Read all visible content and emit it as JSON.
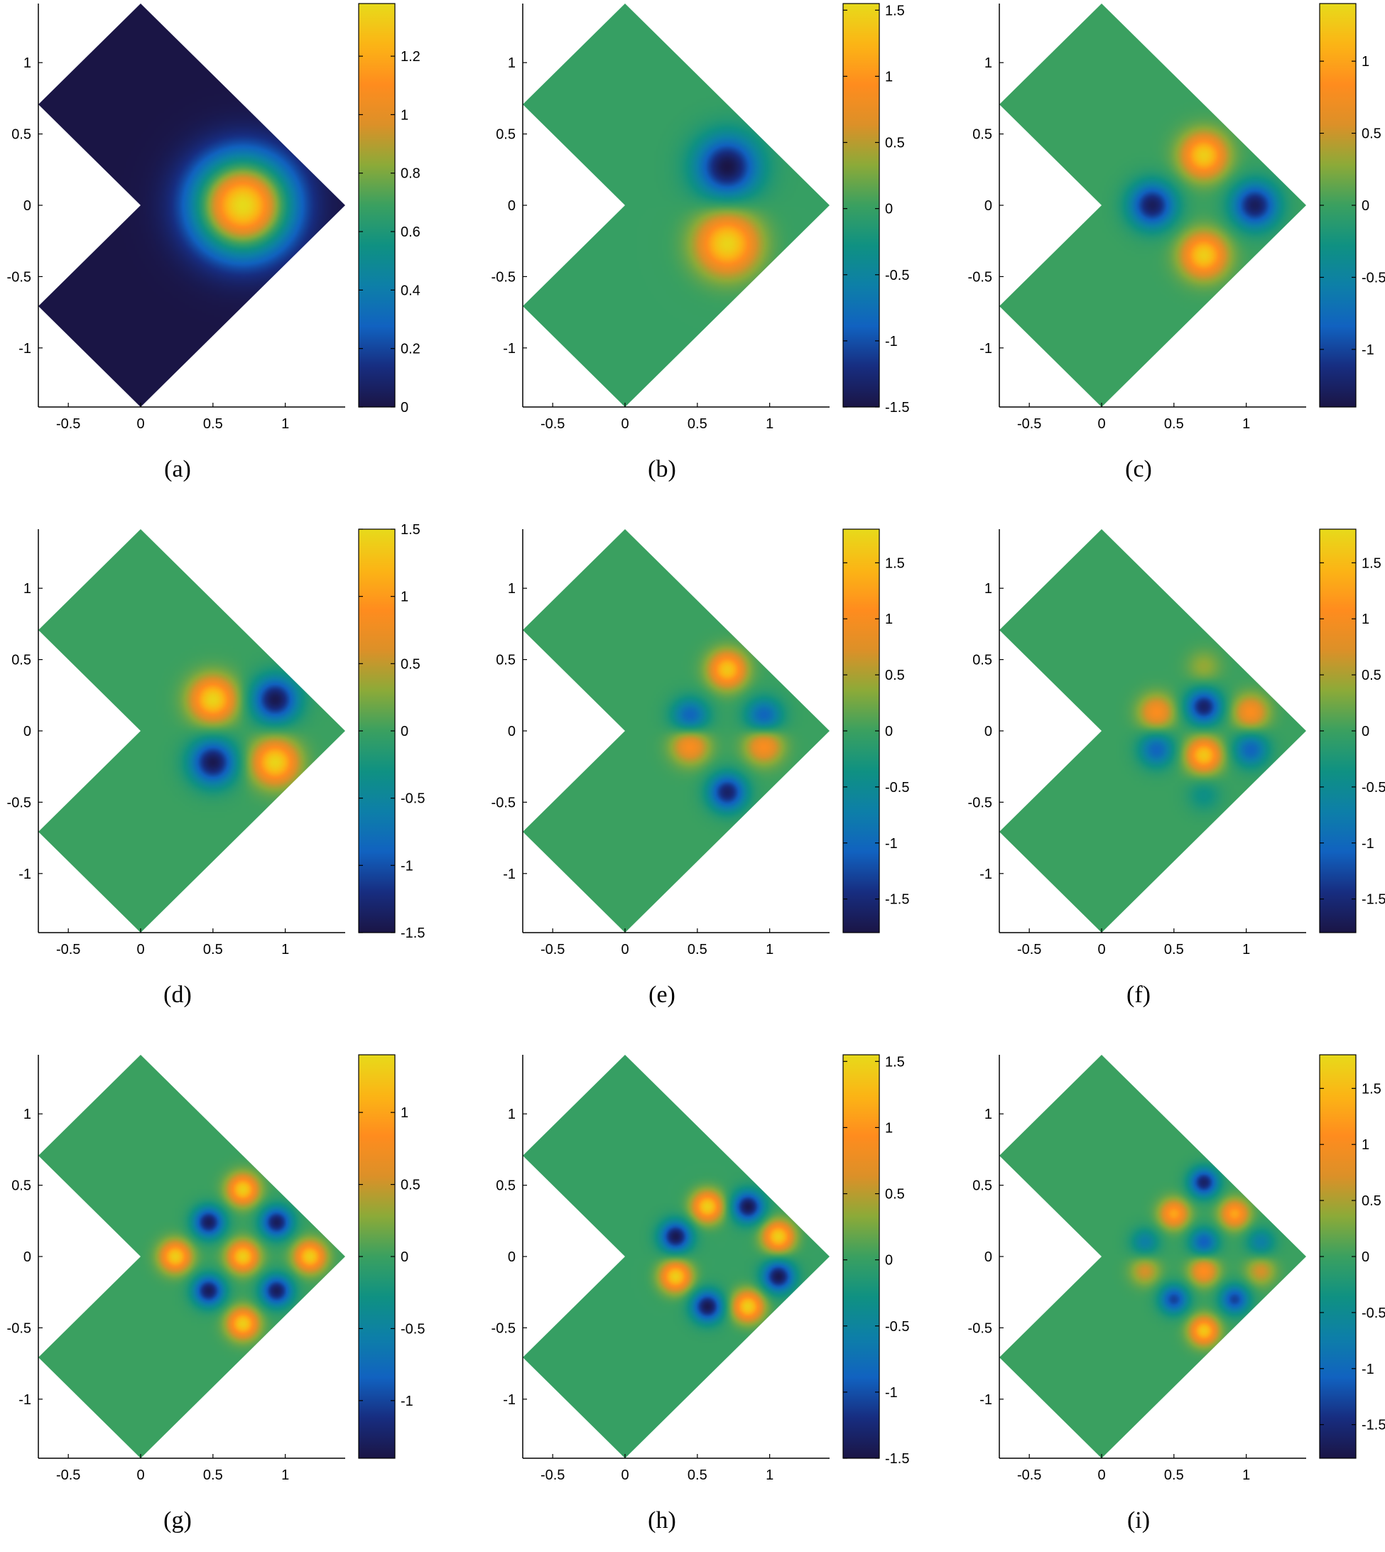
{
  "colormap": [
    "#1a1545",
    "#172d80",
    "#1162c0",
    "#0d7fa8",
    "#0f9182",
    "#3aa060",
    "#8caa38",
    "#dc9028",
    "#ff8c1e",
    "#fbb515",
    "#e7da1a"
  ],
  "chart_data": [
    {
      "type": "heatmap",
      "caption": "(a)",
      "xticks": [
        "-0.5",
        "0",
        "0.5",
        "1"
      ],
      "yticks": [
        "1",
        "0.5",
        "0",
        "-0.5",
        "-1"
      ],
      "xlim": [
        -0.7071,
        1.4142
      ],
      "ylim": [
        -1.4142,
        1.4142
      ],
      "colorbar": {
        "range": [
          0,
          1.38
        ],
        "ticks": [
          0,
          0.2,
          0.4,
          0.6,
          0.8,
          1,
          1.2
        ],
        "labels": [
          "0",
          "0.2",
          "0.4",
          "0.6",
          "0.8",
          "1",
          "1.2"
        ]
      },
      "background": 0,
      "peaks": [
        {
          "x": 0.707,
          "y": 0,
          "v": 1.38,
          "s": 0.23
        }
      ]
    },
    {
      "type": "heatmap",
      "caption": "(b)",
      "xticks": [
        "-0.5",
        "0",
        "0.5",
        "1"
      ],
      "yticks": [
        "1",
        "0.5",
        "0",
        "-0.5",
        "-1"
      ],
      "xlim": [
        -0.7071,
        1.4142
      ],
      "ylim": [
        -1.4142,
        1.4142
      ],
      "colorbar": {
        "range": [
          -1.5,
          1.55
        ],
        "ticks": [
          -1.5,
          -1,
          -0.5,
          0,
          0.5,
          1,
          1.5
        ],
        "labels": [
          "-1.5",
          "-1",
          "-0.5",
          "0",
          "0.5",
          "1",
          "1.5"
        ]
      },
      "background": 0,
      "peaks": [
        {
          "x": 0.707,
          "y": 0.27,
          "v": -1.5,
          "s": 0.15
        },
        {
          "x": 0.707,
          "y": -0.27,
          "v": 1.5,
          "s": 0.15
        }
      ]
    },
    {
      "type": "heatmap",
      "caption": "(c)",
      "xticks": [
        "-0.5",
        "0",
        "0.5",
        "1"
      ],
      "yticks": [
        "1",
        "0.5",
        "0",
        "-0.5",
        "-1"
      ],
      "xlim": [
        -0.7071,
        1.4142
      ],
      "ylim": [
        -1.4142,
        1.4142
      ],
      "colorbar": {
        "range": [
          -1.4,
          1.4
        ],
        "ticks": [
          -1,
          -0.5,
          0,
          0.5,
          1
        ],
        "labels": [
          "-1",
          "-0.5",
          "0",
          "0.5",
          "1"
        ]
      },
      "background": 0,
      "peaks": [
        {
          "x": 0.707,
          "y": 0.35,
          "v": 1.3,
          "s": 0.11
        },
        {
          "x": 0.707,
          "y": -0.35,
          "v": 1.3,
          "s": 0.11
        },
        {
          "x": 0.35,
          "y": 0,
          "v": -1.3,
          "s": 0.11
        },
        {
          "x": 1.06,
          "y": 0,
          "v": -1.3,
          "s": 0.11
        }
      ]
    },
    {
      "type": "heatmap",
      "caption": "(d)",
      "xticks": [
        "-0.5",
        "0",
        "0.5",
        "1"
      ],
      "yticks": [
        "1",
        "0.5",
        "0",
        "-0.5",
        "-1"
      ],
      "xlim": [
        -0.7071,
        1.4142
      ],
      "ylim": [
        -1.4142,
        1.4142
      ],
      "colorbar": {
        "range": [
          -1.5,
          1.5
        ],
        "ticks": [
          -1.5,
          -1,
          -0.5,
          0,
          0.5,
          1,
          1.5
        ],
        "labels": [
          "-1.5",
          "-1",
          "-0.5",
          "0",
          "0.5",
          "1",
          "1.5"
        ]
      },
      "background": 0,
      "peaks": [
        {
          "x": 0.5,
          "y": 0.22,
          "v": 1.45,
          "s": 0.11
        },
        {
          "x": 0.93,
          "y": 0.22,
          "v": -1.45,
          "s": 0.11
        },
        {
          "x": 0.5,
          "y": -0.22,
          "v": -1.45,
          "s": 0.11
        },
        {
          "x": 0.93,
          "y": -0.22,
          "v": 1.45,
          "s": 0.11
        }
      ]
    },
    {
      "type": "heatmap",
      "caption": "(e)",
      "xticks": [
        "-0.5",
        "0",
        "0.5",
        "1"
      ],
      "yticks": [
        "1",
        "0.5",
        "0",
        "-0.5",
        "-1"
      ],
      "xlim": [
        -0.7071,
        1.4142
      ],
      "ylim": [
        -1.4142,
        1.4142
      ],
      "colorbar": {
        "range": [
          -1.8,
          1.8
        ],
        "ticks": [
          -1.5,
          -1,
          -0.5,
          0,
          0.5,
          1,
          1.5
        ],
        "labels": [
          "-1.5",
          "-1",
          "-0.5",
          "0",
          "0.5",
          "1",
          "1.5"
        ]
      },
      "background": 0,
      "peaks": [
        {
          "x": 0.707,
          "y": 0.43,
          "v": 1.6,
          "s": 0.09
        },
        {
          "x": 0.707,
          "y": -0.43,
          "v": -1.6,
          "s": 0.09
        },
        {
          "x": 0.45,
          "y": 0.1,
          "v": -1.1,
          "s": 0.09
        },
        {
          "x": 0.96,
          "y": 0.1,
          "v": -1.1,
          "s": 0.09
        },
        {
          "x": 0.45,
          "y": -0.1,
          "v": 1.1,
          "s": 0.09
        },
        {
          "x": 0.96,
          "y": -0.1,
          "v": 1.1,
          "s": 0.09
        }
      ]
    },
    {
      "type": "heatmap",
      "caption": "(f)",
      "xticks": [
        "-0.5",
        "0",
        "0.5",
        "1"
      ],
      "yticks": [
        "1",
        "0.5",
        "0",
        "-0.5",
        "-1"
      ],
      "xlim": [
        -0.7071,
        1.4142
      ],
      "ylim": [
        -1.4142,
        1.4142
      ],
      "colorbar": {
        "range": [
          -1.8,
          1.8
        ],
        "ticks": [
          -1.5,
          -1,
          -0.5,
          0,
          0.5,
          1,
          1.5
        ],
        "labels": [
          "-1.5",
          "-1",
          "-0.5",
          "0",
          "0.5",
          "1",
          "1.5"
        ]
      },
      "background": 0,
      "peaks": [
        {
          "x": 0.707,
          "y": 0.17,
          "v": -1.6,
          "s": 0.085
        },
        {
          "x": 0.707,
          "y": -0.17,
          "v": 1.6,
          "s": 0.085
        },
        {
          "x": 0.38,
          "y": 0.13,
          "v": 1.05,
          "s": 0.085
        },
        {
          "x": 1.03,
          "y": 0.13,
          "v": 1.05,
          "s": 0.085
        },
        {
          "x": 0.38,
          "y": -0.13,
          "v": -1.05,
          "s": 0.085
        },
        {
          "x": 1.03,
          "y": -0.13,
          "v": -1.05,
          "s": 0.085
        },
        {
          "x": 0.707,
          "y": 0.45,
          "v": 0.4,
          "s": 0.08
        },
        {
          "x": 0.707,
          "y": -0.45,
          "v": -0.4,
          "s": 0.08
        }
      ]
    },
    {
      "type": "heatmap",
      "caption": "(g)",
      "xticks": [
        "-0.5",
        "0",
        "0.5",
        "1"
      ],
      "yticks": [
        "1",
        "0.5",
        "0",
        "-0.5",
        "-1"
      ],
      "xlim": [
        -0.7071,
        1.4142
      ],
      "ylim": [
        -1.4142,
        1.4142
      ],
      "colorbar": {
        "range": [
          -1.4,
          1.4
        ],
        "ticks": [
          -1,
          -0.5,
          0,
          0.5,
          1
        ],
        "labels": [
          "-1",
          "-0.5",
          "0",
          "0.5",
          "1"
        ]
      },
      "background": 0,
      "peaks": [
        {
          "x": 0.707,
          "y": 0,
          "v": 1.3,
          "s": 0.075
        },
        {
          "x": 0.707,
          "y": 0.47,
          "v": 1.3,
          "s": 0.075
        },
        {
          "x": 0.707,
          "y": -0.47,
          "v": 1.3,
          "s": 0.075
        },
        {
          "x": 0.24,
          "y": 0,
          "v": 1.3,
          "s": 0.075
        },
        {
          "x": 1.17,
          "y": 0,
          "v": 1.3,
          "s": 0.075
        },
        {
          "x": 0.47,
          "y": 0.24,
          "v": -1.3,
          "s": 0.075
        },
        {
          "x": 0.94,
          "y": 0.24,
          "v": -1.3,
          "s": 0.075
        },
        {
          "x": 0.47,
          "y": -0.24,
          "v": -1.3,
          "s": 0.075
        },
        {
          "x": 0.94,
          "y": -0.24,
          "v": -1.3,
          "s": 0.075
        }
      ]
    },
    {
      "type": "heatmap",
      "caption": "(h)",
      "xticks": [
        "-0.5",
        "0",
        "0.5",
        "1"
      ],
      "yticks": [
        "1",
        "0.5",
        "0",
        "-0.5",
        "-1"
      ],
      "xlim": [
        -0.7071,
        1.4142
      ],
      "ylim": [
        -1.4142,
        1.4142
      ],
      "colorbar": {
        "range": [
          -1.5,
          1.55
        ],
        "ticks": [
          -1.5,
          -1,
          -0.5,
          0,
          0.5,
          1,
          1.5
        ],
        "labels": [
          "-1.5",
          "-1",
          "-0.5",
          "0",
          "0.5",
          "1",
          "1.5"
        ]
      },
      "background": 0,
      "peaks": [
        {
          "x": 0.57,
          "y": 0.35,
          "v": 1.45,
          "s": 0.075
        },
        {
          "x": 0.85,
          "y": 0.35,
          "v": -1.45,
          "s": 0.075
        },
        {
          "x": 1.06,
          "y": 0.14,
          "v": 1.45,
          "s": 0.075
        },
        {
          "x": 1.06,
          "y": -0.14,
          "v": -1.45,
          "s": 0.075
        },
        {
          "x": 0.85,
          "y": -0.35,
          "v": 1.45,
          "s": 0.075
        },
        {
          "x": 0.57,
          "y": -0.35,
          "v": -1.45,
          "s": 0.075
        },
        {
          "x": 0.35,
          "y": -0.14,
          "v": 1.45,
          "s": 0.075
        },
        {
          "x": 0.35,
          "y": 0.14,
          "v": -1.45,
          "s": 0.075
        }
      ]
    },
    {
      "type": "heatmap",
      "caption": "(i)",
      "xticks": [
        "-0.5",
        "0",
        "0.5",
        "1"
      ],
      "yticks": [
        "1",
        "0.5",
        "0",
        "-0.5",
        "-1"
      ],
      "xlim": [
        -0.7071,
        1.4142
      ],
      "ylim": [
        -1.4142,
        1.4142
      ],
      "colorbar": {
        "range": [
          -1.8,
          1.8
        ],
        "ticks": [
          -1.5,
          -1,
          -0.5,
          0,
          0.5,
          1,
          1.5
        ],
        "labels": [
          "-1.5",
          "-1",
          "-0.5",
          "0",
          "0.5",
          "1",
          "1.5"
        ]
      },
      "background": 0,
      "peaks": [
        {
          "x": 0.707,
          "y": 0.52,
          "v": -1.6,
          "s": 0.07
        },
        {
          "x": 0.707,
          "y": -0.52,
          "v": 1.6,
          "s": 0.07
        },
        {
          "x": 0.5,
          "y": 0.3,
          "v": 1.3,
          "s": 0.07
        },
        {
          "x": 0.92,
          "y": 0.3,
          "v": 1.3,
          "s": 0.07
        },
        {
          "x": 0.5,
          "y": -0.3,
          "v": -1.3,
          "s": 0.07
        },
        {
          "x": 0.92,
          "y": -0.3,
          "v": -1.3,
          "s": 0.07
        },
        {
          "x": 0.3,
          "y": 0.1,
          "v": -0.7,
          "s": 0.07
        },
        {
          "x": 0.707,
          "y": 0.1,
          "v": -1.1,
          "s": 0.07
        },
        {
          "x": 1.1,
          "y": 0.1,
          "v": -0.7,
          "s": 0.07
        },
        {
          "x": 0.3,
          "y": -0.1,
          "v": 0.7,
          "s": 0.07
        },
        {
          "x": 0.707,
          "y": -0.1,
          "v": 1.1,
          "s": 0.07
        },
        {
          "x": 1.1,
          "y": -0.1,
          "v": 0.7,
          "s": 0.07
        }
      ]
    }
  ]
}
